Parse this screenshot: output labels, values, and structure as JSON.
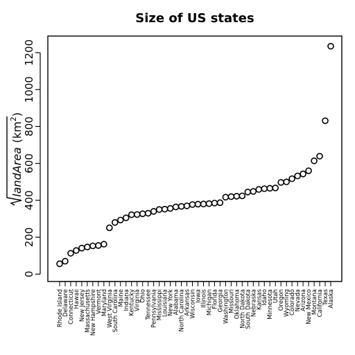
{
  "chart_data": {
    "type": "scatter",
    "title": "Size of US states",
    "ylabel": {
      "var": "landArea",
      "unit_text": "(km",
      "unit_sup": "2",
      "unit_close": ")"
    },
    "ylim": [
      -40,
      1290
    ],
    "yticks": [
      0,
      200,
      400,
      600,
      800,
      1000,
      1200
    ],
    "grid": false,
    "marker": "open-circle",
    "categories": [
      "Rhode Island",
      "Delaware",
      "Connecticut",
      "Hawaii",
      "New Jersey",
      "Massachusetts",
      "New Hampshire",
      "Vermont",
      "Maryland",
      "West Virginia",
      "South Carolina",
      "Maine",
      "Indiana",
      "Kentucky",
      "Virginia",
      "Ohio",
      "Tennessee",
      "Pennsylvania",
      "Mississippi",
      "Louisiana",
      "New York",
      "Alabama",
      "North Carolina",
      "Arkansas",
      "Wisconsin",
      "Iowa",
      "Illinois",
      "Michigan",
      "Florida",
      "Georgia",
      "Washington",
      "Missouri",
      "Oklahoma",
      "North Dakota",
      "South Dakota",
      "Nebraska",
      "Kansas",
      "Idaho",
      "Minnesota",
      "Utah",
      "Oregon",
      "Wyoming",
      "Colorado",
      "Nevada",
      "Arizona",
      "New Mexico",
      "Montana",
      "California",
      "Texas",
      "Alaska"
    ],
    "values": [
      56,
      70,
      113,
      128,
      141,
      147,
      153,
      155,
      162,
      251,
      280,
      293,
      305,
      322,
      323,
      327,
      330,
      340,
      350,
      352,
      356,
      364,
      367,
      370,
      377,
      379,
      380,
      382,
      385,
      387,
      417,
      420,
      422,
      424,
      445,
      448,
      459,
      463,
      465,
      467,
      497,
      500,
      517,
      532,
      543,
      560,
      614,
      639,
      831,
      1235
    ]
  }
}
